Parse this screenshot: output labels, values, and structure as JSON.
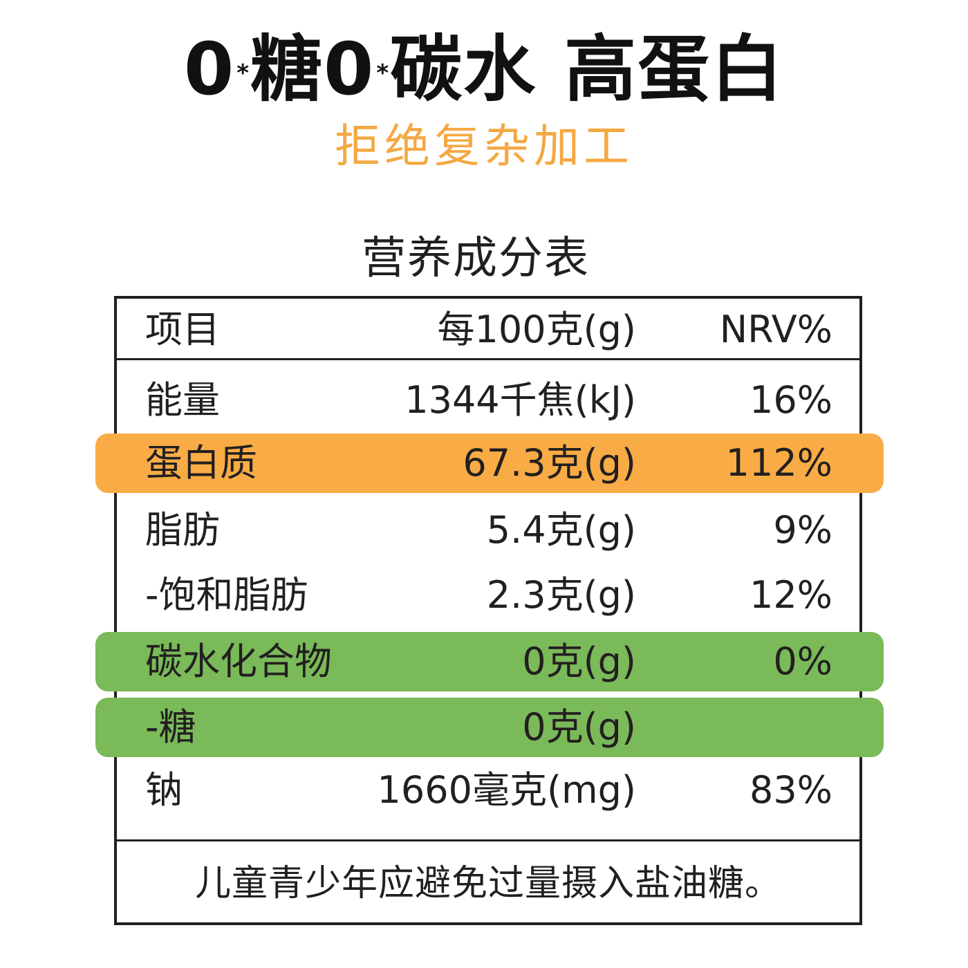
{
  "headline": {
    "zero1": "0",
    "star1": "*",
    "sugar": "糖",
    "zero2": "0",
    "star2": "*",
    "carb": "碳水",
    "protein": "高蛋白"
  },
  "subheadline": "拒绝复杂加工",
  "table": {
    "title": "营养成分表",
    "header": {
      "item": "项目",
      "per100": "每100克(g)",
      "nrv": "NRV%"
    },
    "rows": [
      {
        "name": "能量",
        "amount": "1344千焦(kJ)",
        "nrv": "16%"
      },
      {
        "name": "蛋白质",
        "amount": "67.3克(g)",
        "nrv": "112%"
      },
      {
        "name": "脂肪",
        "amount": "5.4克(g)",
        "nrv": "9%"
      },
      {
        "name": "-饱和脂肪",
        "amount": "2.3克(g)",
        "nrv": "12%"
      },
      {
        "name": "碳水化合物",
        "amount": "0克(g)",
        "nrv": "0%"
      },
      {
        "name": "-糖",
        "amount": "0克(g)",
        "nrv": ""
      },
      {
        "name": "钠",
        "amount": "1660毫克(mg)",
        "nrv": "83%"
      }
    ],
    "footnote": "儿童青少年应避免过量摄入盐油糖。"
  },
  "colors": {
    "accent_orange": "#f9ac45",
    "subheadline_orange": "#f5a843",
    "highlight_green": "#7aba59",
    "text": "#231f20"
  }
}
